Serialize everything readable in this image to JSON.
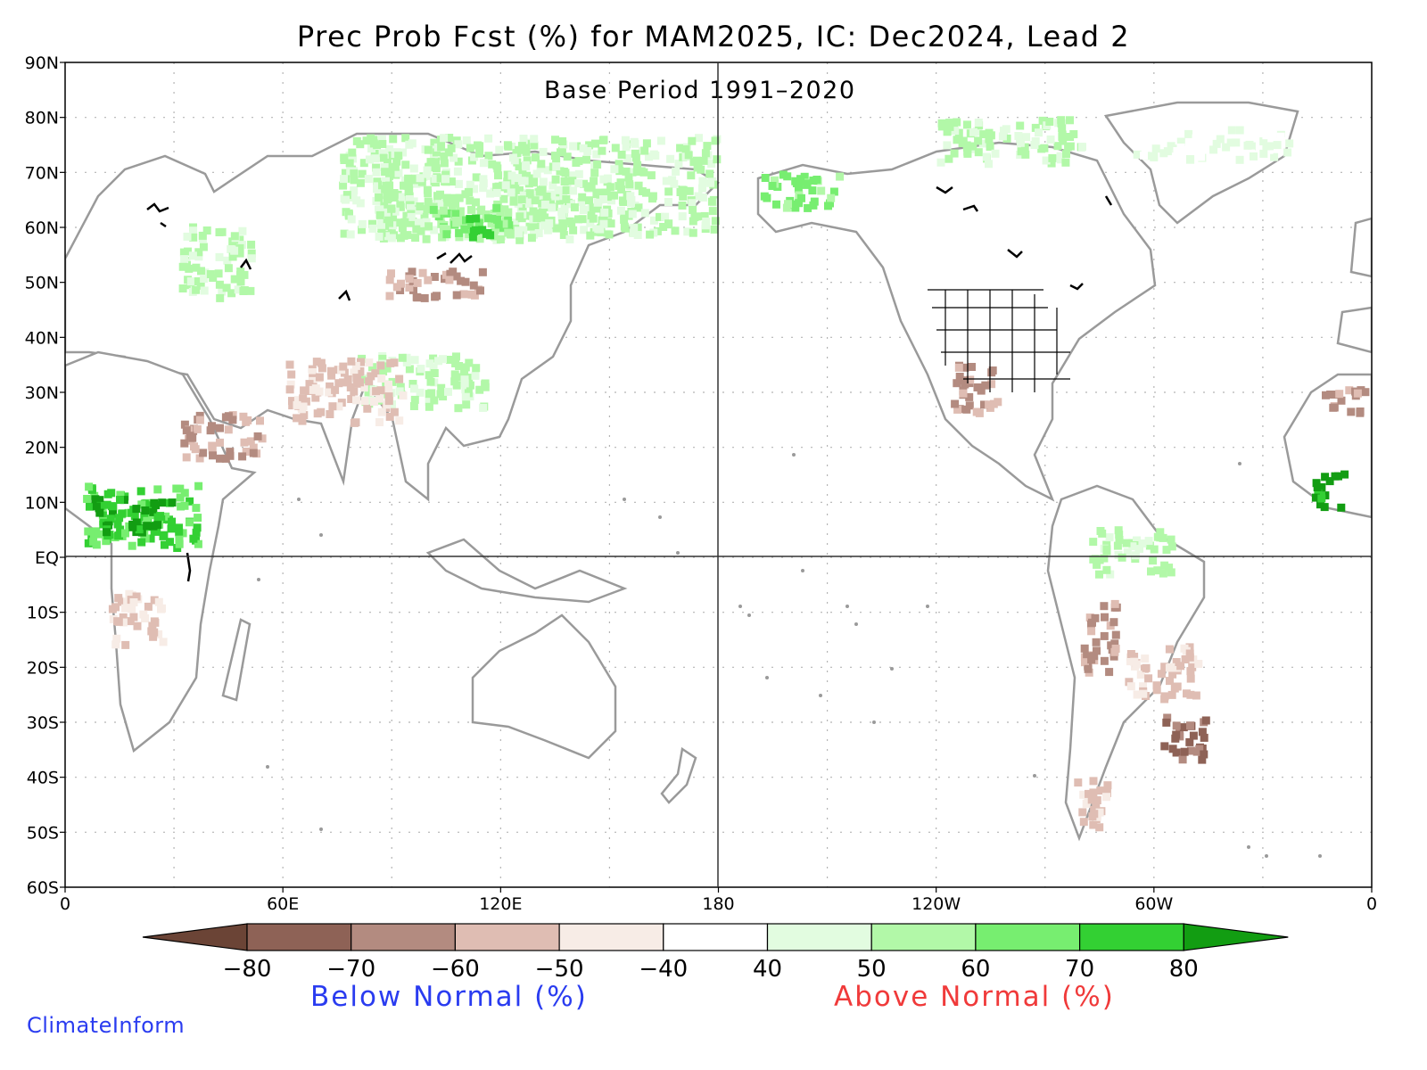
{
  "title": "Prec Prob Fcst (%) for MAM2025, IC: Dec2024, Lead 2",
  "subtitle": "Base Period 1991–2020",
  "lat_labels": [
    "90N",
    "80N",
    "70N",
    "60N",
    "50N",
    "40N",
    "30N",
    "20N",
    "10N",
    "EQ",
    "10S",
    "20S",
    "30S",
    "40S",
    "50S",
    "60S"
  ],
  "lon_labels": [
    "0",
    "60E",
    "120E",
    "180",
    "120W",
    "60W",
    "0"
  ],
  "colorbar": {
    "labels": [
      "−80",
      "−70",
      "−60",
      "−50",
      "−40",
      "40",
      "50",
      "60",
      "70",
      "80"
    ],
    "colors": [
      "#6b4436",
      "#8e6256",
      "#b38b80",
      "#dfbdb3",
      "#f7ece6",
      "#ffffff",
      "#e2fce0",
      "#b2f8a8",
      "#77ee70",
      "#33d033",
      "#129d12"
    ],
    "below_label": "Below Normal (%)",
    "above_label": "Above Normal (%)"
  },
  "brand": "ClimateInform",
  "map_colors": {
    "coast": "#9a9a9a",
    "lakes": "#000000",
    "grid": "#b4b4b4",
    "frame": "#000000"
  }
}
